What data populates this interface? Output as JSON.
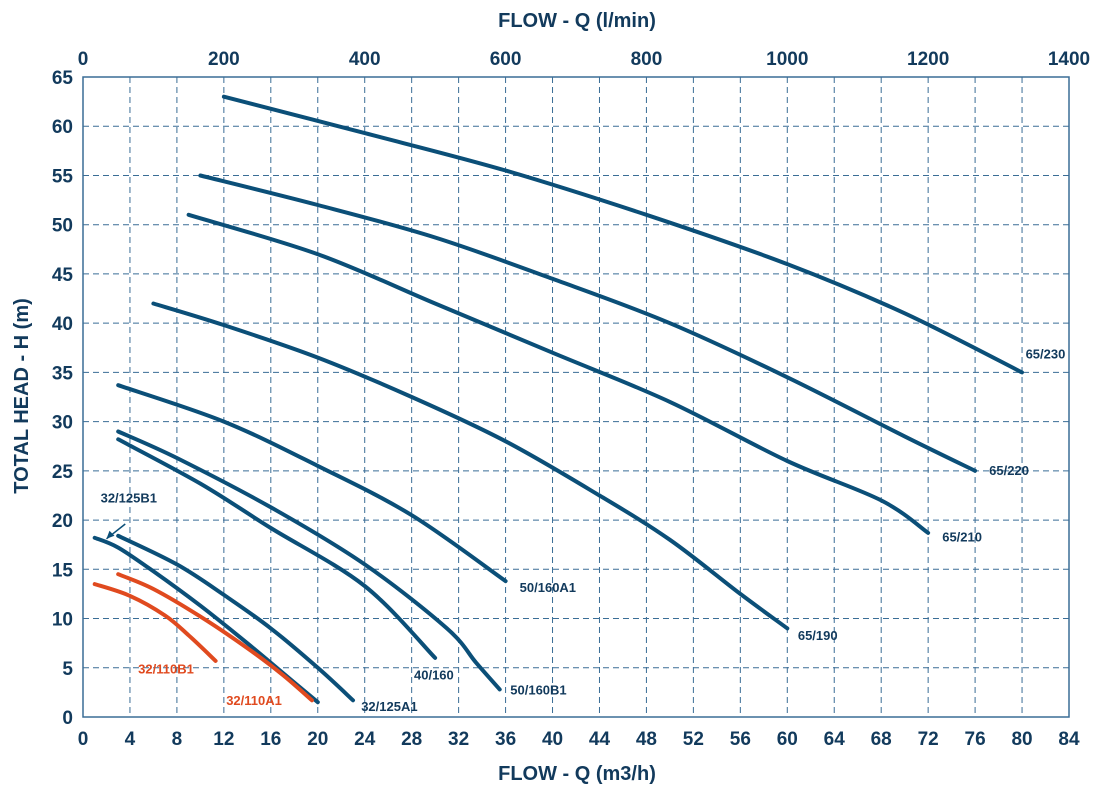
{
  "chart_data": {
    "type": "line",
    "title": "",
    "xlabel": "FLOW - Q (m3/h)",
    "x2label": "FLOW - Q (l/min)",
    "ylabel": "TOTAL HEAD - H (m)",
    "xlim": [
      0,
      84
    ],
    "ylim": [
      0,
      65
    ],
    "x2lim": [
      0,
      1400
    ],
    "grid": true,
    "x_ticks": [
      "0",
      "4",
      "8",
      "12",
      "16",
      "20",
      "24",
      "28",
      "32",
      "36",
      "40",
      "44",
      "48",
      "52",
      "56",
      "60",
      "64",
      "68",
      "72",
      "76",
      "80",
      "84"
    ],
    "x2_ticks": [
      "0",
      "200",
      "400",
      "600",
      "800",
      "1000",
      "1200",
      "1400"
    ],
    "y_ticks": [
      "0",
      "5",
      "10",
      "15",
      "20",
      "25",
      "30",
      "35",
      "40",
      "45",
      "50",
      "55",
      "60",
      "65"
    ],
    "colors": {
      "blue": "#0b4f78",
      "red": "#e04a1f",
      "grid": "#3a6d96"
    },
    "series": [
      {
        "name": "65/230",
        "color": "#0b4f78",
        "points": [
          [
            12,
            63
          ],
          [
            24,
            59.3
          ],
          [
            36,
            55.5
          ],
          [
            48,
            51
          ],
          [
            60,
            46
          ],
          [
            70,
            41
          ],
          [
            80,
            35
          ]
        ]
      },
      {
        "name": "65/220",
        "color": "#0b4f78",
        "points": [
          [
            10,
            55
          ],
          [
            20,
            52
          ],
          [
            30,
            48.7
          ],
          [
            40,
            44.5
          ],
          [
            50,
            40
          ],
          [
            60,
            34.5
          ],
          [
            70,
            28.5
          ],
          [
            76,
            25
          ]
        ]
      },
      {
        "name": "65/210",
        "color": "#0b4f78",
        "points": [
          [
            9,
            51
          ],
          [
            20,
            47
          ],
          [
            30,
            42
          ],
          [
            40,
            37
          ],
          [
            50,
            32
          ],
          [
            60,
            26
          ],
          [
            68,
            22
          ],
          [
            72,
            18.7
          ]
        ]
      },
      {
        "name": "65/190",
        "color": "#0b4f78",
        "points": [
          [
            6,
            42
          ],
          [
            12,
            39.8
          ],
          [
            20,
            36.5
          ],
          [
            28,
            32.5
          ],
          [
            36,
            28
          ],
          [
            44,
            22.5
          ],
          [
            50,
            18
          ],
          [
            56,
            12.5
          ],
          [
            60,
            9
          ]
        ]
      },
      {
        "name": "50/160A1",
        "color": "#0b4f78",
        "points": [
          [
            3,
            33.7
          ],
          [
            12,
            30
          ],
          [
            20,
            25.5
          ],
          [
            28,
            20.5
          ],
          [
            36,
            13.8
          ]
        ]
      },
      {
        "name": "50/160B1",
        "color": "#0b4f78",
        "points": [
          [
            3,
            29
          ],
          [
            8,
            26.3
          ],
          [
            16,
            21.3
          ],
          [
            24,
            15.5
          ],
          [
            31,
            9
          ],
          [
            33.5,
            5.5
          ],
          [
            35.5,
            2.8
          ]
        ]
      },
      {
        "name": "40/160",
        "color": "#0b4f78",
        "points": [
          [
            3,
            28.2
          ],
          [
            10,
            23.7
          ],
          [
            16,
            19.2
          ],
          [
            24,
            13.3
          ],
          [
            30,
            6
          ]
        ]
      },
      {
        "name": "32/125A1",
        "color": "#0b4f78",
        "points": [
          [
            3,
            18.4
          ],
          [
            8,
            15.5
          ],
          [
            12,
            12.4
          ],
          [
            16,
            9
          ],
          [
            20,
            5
          ],
          [
            23,
            1.7
          ]
        ]
      },
      {
        "name": "32/125B1",
        "color": "#0b4f78",
        "points": [
          [
            1,
            18.2
          ],
          [
            3,
            17.2
          ],
          [
            6,
            14.8
          ],
          [
            10,
            11.3
          ],
          [
            14,
            7.5
          ],
          [
            18,
            3.5
          ],
          [
            20,
            1.5
          ]
        ]
      },
      {
        "name": "32/110A1",
        "color": "#e04a1f",
        "points": [
          [
            3,
            14.5
          ],
          [
            6,
            13
          ],
          [
            10,
            10.2
          ],
          [
            14,
            7
          ],
          [
            17,
            4.3
          ],
          [
            19.5,
            1.7
          ]
        ]
      },
      {
        "name": "32/110B1",
        "color": "#e04a1f",
        "points": [
          [
            1,
            13.5
          ],
          [
            4,
            12.3
          ],
          [
            7,
            10.3
          ],
          [
            9,
            8.3
          ],
          [
            11.3,
            5.7
          ]
        ]
      }
    ],
    "annotations": [
      {
        "text": "65/230",
        "color": "#123a5c",
        "x": 80.3,
        "y": 36.4
      },
      {
        "text": "65/220",
        "color": "#123a5c",
        "x": 77.2,
        "y": 24.6
      },
      {
        "text": "65/210",
        "color": "#123a5c",
        "x": 73.2,
        "y": 17.8
      },
      {
        "text": "65/190",
        "color": "#123a5c",
        "x": 60.9,
        "y": 7.8
      },
      {
        "text": "50/160A1",
        "color": "#123a5c",
        "x": 37.2,
        "y": 12.7
      },
      {
        "text": "50/160B1",
        "color": "#123a5c",
        "x": 36.4,
        "y": 2.3
      },
      {
        "text": "40/160",
        "color": "#123a5c",
        "x": 28.2,
        "y": 3.8
      },
      {
        "text": "32/125A1",
        "color": "#123a5c",
        "x": 23.7,
        "y": 0.6
      },
      {
        "text": "32/125B1",
        "color": "#123a5c",
        "x": 1.5,
        "y": 21.8
      },
      {
        "text": "32/110A1",
        "color": "#e04a1f",
        "x": 12.2,
        "y": 1.2
      },
      {
        "text": "32/110B1",
        "color": "#e04a1f",
        "x": 4.7,
        "y": 4.4
      }
    ]
  }
}
